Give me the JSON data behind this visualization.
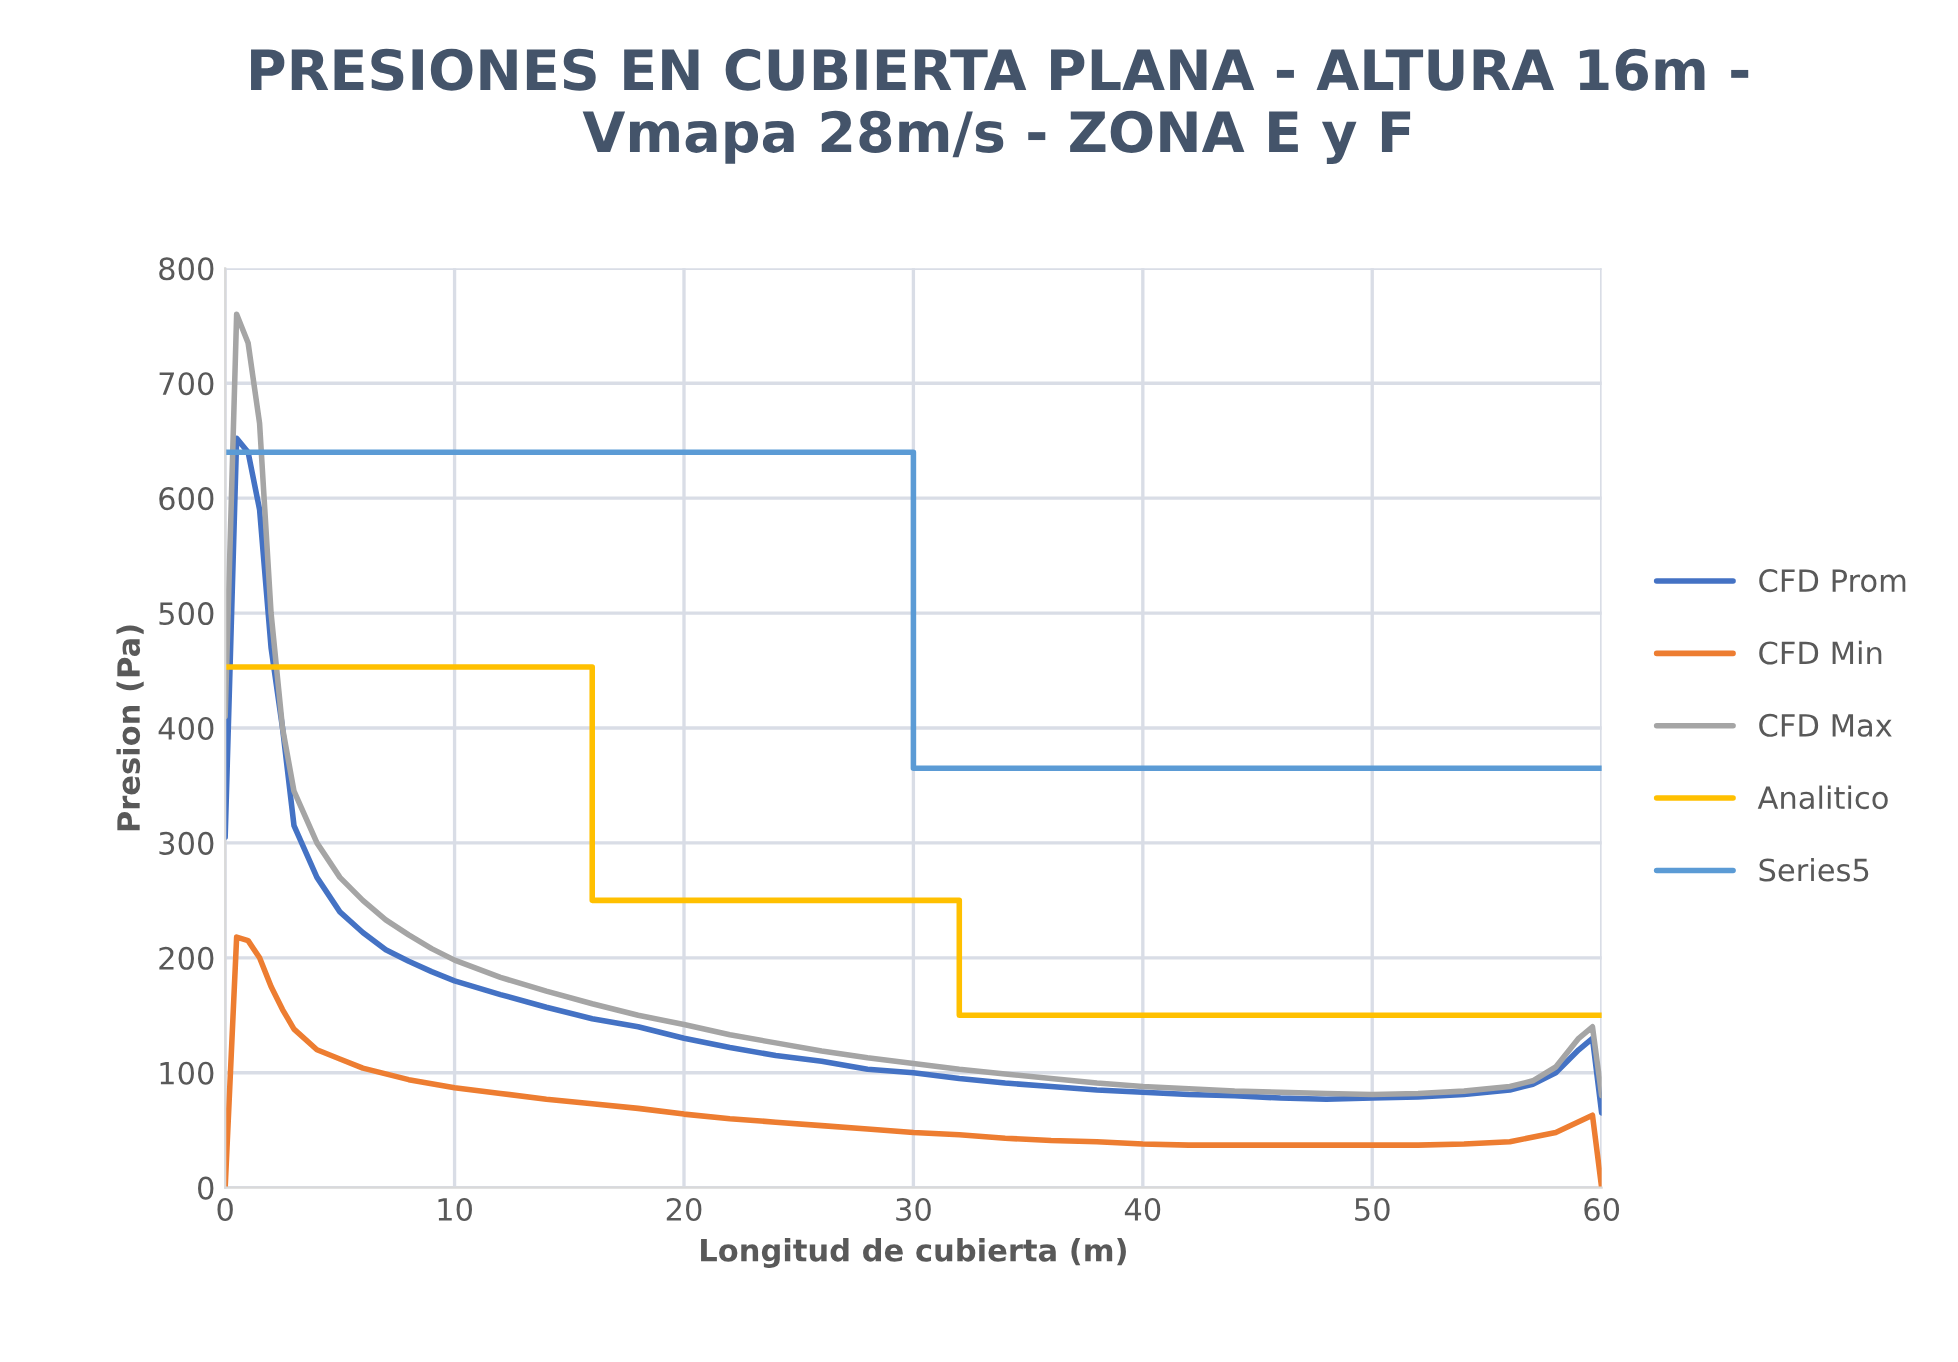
{
  "chart_data": {
    "type": "line",
    "title": "PRESIONES EN CUBIERTA PLANA - ALTURA 16m -\nVmapa 28m/s - ZONA E y F",
    "xlabel": "Longitud de cubierta (m)",
    "ylabel": "Presion (Pa)",
    "xlim": [
      0,
      60
    ],
    "xticks": [
      0,
      10,
      20,
      30,
      40,
      50,
      60
    ],
    "ylim": [
      0,
      800
    ],
    "yticks": [
      0,
      100,
      200,
      300,
      400,
      500,
      600,
      700,
      800
    ],
    "grid": true,
    "legend": "right",
    "marker": "none",
    "line_style": "solid",
    "series": [
      {
        "name": "CFD Prom",
        "color": "#4472c4",
        "x": [
          0,
          0.5,
          1,
          1.5,
          2,
          2.5,
          3,
          4,
          5,
          6,
          7,
          8,
          9,
          10,
          12,
          14,
          16,
          18,
          20,
          22,
          24,
          26,
          28,
          30,
          32,
          34,
          36,
          38,
          40,
          42,
          44,
          46,
          48,
          50,
          52,
          54,
          56,
          57,
          58,
          59,
          59.6,
          60
        ],
        "values": [
          305,
          652,
          640,
          590,
          470,
          400,
          315,
          270,
          240,
          222,
          207,
          197,
          188,
          180,
          168,
          157,
          147,
          140,
          130,
          122,
          115,
          110,
          103,
          100,
          95,
          91,
          88,
          85,
          83,
          81,
          80,
          78,
          77,
          78,
          79,
          81,
          85,
          90,
          100,
          120,
          130,
          65
        ]
      },
      {
        "name": "CFD Min",
        "color": "#ed7d31",
        "x": [
          0,
          0.5,
          1,
          1.5,
          2,
          2.5,
          3,
          4,
          5,
          6,
          7,
          8,
          10,
          12,
          14,
          16,
          18,
          20,
          22,
          24,
          26,
          28,
          30,
          32,
          34,
          36,
          38,
          40,
          42,
          44,
          46,
          48,
          50,
          52,
          54,
          56,
          58,
          59.6,
          60
        ],
        "values": [
          0,
          218,
          215,
          200,
          175,
          155,
          138,
          120,
          112,
          104,
          99,
          94,
          87,
          82,
          77,
          73,
          69,
          64,
          60,
          57,
          54,
          51,
          48,
          46,
          43,
          41,
          40,
          38,
          37,
          37,
          37,
          37,
          37,
          37,
          38,
          40,
          48,
          63,
          0
        ]
      },
      {
        "name": "CFD Max",
        "color": "#a5a5a5",
        "x": [
          0,
          0.5,
          1,
          1.5,
          2,
          2.5,
          3,
          4,
          5,
          6,
          7,
          8,
          9,
          10,
          12,
          14,
          16,
          18,
          20,
          22,
          24,
          26,
          28,
          30,
          32,
          34,
          36,
          38,
          40,
          42,
          44,
          46,
          48,
          50,
          52,
          54,
          56,
          57,
          58,
          59,
          59.6,
          60
        ],
        "values": [
          410,
          760,
          735,
          665,
          500,
          400,
          345,
          300,
          270,
          250,
          233,
          220,
          208,
          198,
          183,
          171,
          160,
          150,
          142,
          133,
          126,
          119,
          113,
          108,
          103,
          99,
          95,
          91,
          88,
          86,
          84,
          83,
          82,
          81,
          82,
          84,
          88,
          93,
          105,
          130,
          140,
          80
        ]
      },
      {
        "name": "Analitico",
        "color": "#ffc000",
        "x": [
          0,
          16,
          16,
          32,
          32,
          60
        ],
        "values": [
          453,
          453,
          250,
          250,
          150,
          150
        ]
      },
      {
        "name": "Series5",
        "color": "#5b9bd5",
        "x": [
          0,
          30,
          30,
          60
        ],
        "values": [
          640,
          640,
          365,
          365
        ]
      }
    ]
  }
}
